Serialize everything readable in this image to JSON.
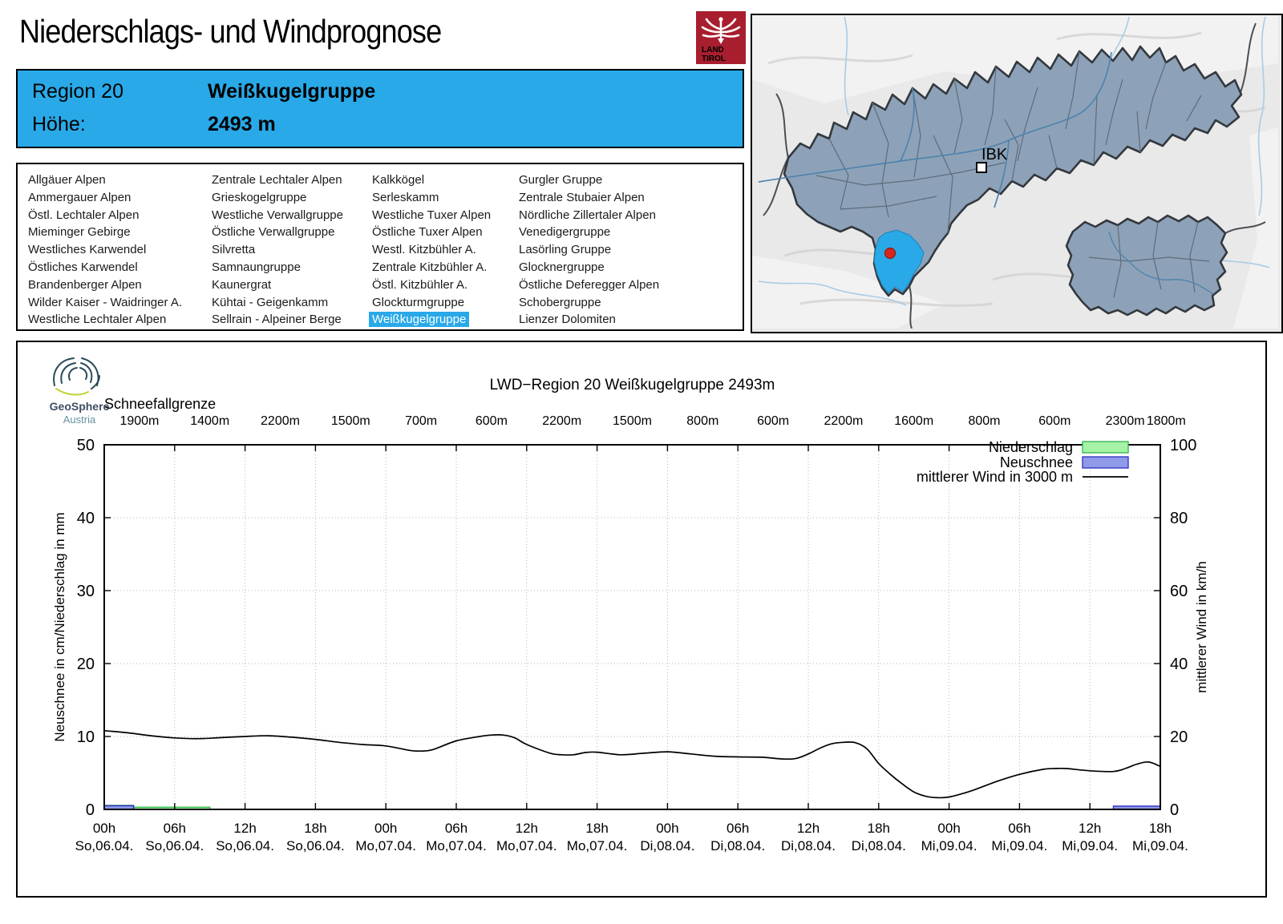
{
  "header": {
    "title": "Niederschlags- und Windprognose",
    "logo": {
      "line1": "LAND",
      "line2": "TIROL",
      "icon": "tirol-eagle-icon"
    }
  },
  "colors": {
    "accent_blue": "#29a9e8",
    "land_tirol_red": "#a81e2e",
    "map_region_fill": "#8da2b8",
    "marker_red": "#d9261c"
  },
  "info_box": {
    "region_label": "Region 20",
    "region_name": "Weißkugelgruppe",
    "altitude_label": "Höhe:",
    "altitude_value": "2493 m"
  },
  "regions": {
    "selected": "Weißkugelgruppe",
    "columns": [
      [
        "Allgäuer Alpen",
        "Ammergauer Alpen",
        "Östl. Lechtaler Alpen",
        "Mieminger Gebirge",
        "Westliches Karwendel",
        "Östliches Karwendel",
        "Brandenberger Alpen",
        "Wilder Kaiser - Waidringer A.",
        "Westliche Lechtaler Alpen"
      ],
      [
        "Zentrale Lechtaler Alpen",
        "Grieskogelgruppe",
        "Westliche Verwallgruppe",
        "Östliche Verwallgruppe",
        "Silvretta",
        "Samnaungruppe",
        "Kaunergrat",
        "Kühtai - Geigenkamm",
        "Sellrain - Alpeiner Berge"
      ],
      [
        "Kalkkögel",
        "Serleskamm",
        "Westliche Tuxer Alpen",
        "Östliche Tuxer Alpen",
        "Westl. Kitzbühler A.",
        "Zentrale Kitzbühler A.",
        "Östl. Kitzbühler A.",
        "Glockturmgruppe",
        "Weißkugelgruppe"
      ],
      [
        "Gurgler Gruppe",
        "Zentrale Stubaier Alpen",
        "Nördliche Zillertaler Alpen",
        "Venedigergruppe",
        "Lasörling Gruppe",
        "Glocknergruppe",
        "Östliche Deferegger Alpen",
        "Schobergruppe",
        "Lienzer Dolomiten"
      ]
    ]
  },
  "map": {
    "city_label": "IBK"
  },
  "geosphere_logo": {
    "line1": "GeoSphere",
    "line2": "Austria"
  },
  "chart_data": {
    "type": "line+bar",
    "title": "LWD−Region 20 Weißkugelgruppe 2493m",
    "top_axis": {
      "label": "Schneefallgrenze",
      "tick_hours": [
        3,
        9,
        15,
        21,
        27,
        33,
        39,
        45,
        51,
        57,
        63,
        69,
        75,
        81,
        87,
        90.5
      ],
      "tick_labels": [
        "1900m",
        "1400m",
        "2200m",
        "1500m",
        "700m",
        "600m",
        "2200m",
        "1500m",
        "800m",
        "600m",
        "2200m",
        "1600m",
        "800m",
        "600m",
        "2300m",
        "1800m"
      ]
    },
    "x_axis": {
      "hour_range": [
        0,
        90
      ],
      "ticks": [
        {
          "hour": 0,
          "time": "00h",
          "date": "So,06.04."
        },
        {
          "hour": 6,
          "time": "06h",
          "date": "So,06.04."
        },
        {
          "hour": 12,
          "time": "12h",
          "date": "So,06.04."
        },
        {
          "hour": 18,
          "time": "18h",
          "date": "So,06.04."
        },
        {
          "hour": 24,
          "time": "00h",
          "date": "Mo,07.04."
        },
        {
          "hour": 30,
          "time": "06h",
          "date": "Mo,07.04."
        },
        {
          "hour": 36,
          "time": "12h",
          "date": "Mo,07.04."
        },
        {
          "hour": 42,
          "time": "18h",
          "date": "Mo,07.04."
        },
        {
          "hour": 48,
          "time": "00h",
          "date": "Di,08.04."
        },
        {
          "hour": 54,
          "time": "06h",
          "date": "Di,08.04."
        },
        {
          "hour": 60,
          "time": "12h",
          "date": "Di,08.04."
        },
        {
          "hour": 66,
          "time": "18h",
          "date": "Di,08.04."
        },
        {
          "hour": 72,
          "time": "00h",
          "date": "Mi,09.04."
        },
        {
          "hour": 78,
          "time": "06h",
          "date": "Mi,09.04."
        },
        {
          "hour": 84,
          "time": "12h",
          "date": "Mi,09.04."
        },
        {
          "hour": 90,
          "time": "18h",
          "date": "Mi,09.04."
        }
      ]
    },
    "y_left": {
      "label": "Neuschnee in cm/Niederschlag in mm",
      "min": 0,
      "max": 50,
      "ticks": [
        0,
        10,
        20,
        30,
        40,
        50
      ]
    },
    "y_right": {
      "label": "mittlerer Wind in km/h",
      "min": 0,
      "max": 100,
      "ticks": [
        0,
        20,
        40,
        60,
        80,
        100
      ]
    },
    "grid": {
      "vertical_every_hours": 6,
      "horizontal_at": [
        10,
        20,
        30,
        40
      ]
    },
    "legend": [
      {
        "label": "Niederschlag",
        "type": "box",
        "fill": "#a6f2a6",
        "stroke": "#2db34a"
      },
      {
        "label": "Neuschnee",
        "type": "box",
        "fill": "#8f9ae8",
        "stroke": "#2d2dc4"
      },
      {
        "label": "mittlerer Wind in 3000 m",
        "type": "line",
        "stroke": "#000000"
      }
    ],
    "series": {
      "niederschlag": {
        "name": "Niederschlag",
        "unit": "mm",
        "axis": "left",
        "fill": "#a6f2a6",
        "stroke": "#2db34a",
        "segments": [
          {
            "from_hour": 0,
            "to_hour": 2.5,
            "value": 0.55
          },
          {
            "from_hour": 2.5,
            "to_hour": 9,
            "value": 0.3
          }
        ]
      },
      "neuschnee": {
        "name": "Neuschnee",
        "unit": "cm",
        "axis": "left",
        "fill": "#8f9ae8",
        "stroke": "#2d2dc4",
        "segments": [
          {
            "from_hour": 0,
            "to_hour": 2.5,
            "value": 0.5
          },
          {
            "from_hour": 86,
            "to_hour": 90,
            "value": 0.45
          }
        ]
      },
      "wind": {
        "name": "mittlerer Wind in 3000 m",
        "unit": "km/h",
        "axis": "right",
        "color": "#000000",
        "points": [
          [
            0,
            21.6
          ],
          [
            2,
            21.0
          ],
          [
            4,
            20.2
          ],
          [
            6,
            19.6
          ],
          [
            8,
            19.4
          ],
          [
            10,
            19.7
          ],
          [
            12,
            20.0
          ],
          [
            14,
            20.2
          ],
          [
            16,
            19.8
          ],
          [
            18,
            19.2
          ],
          [
            20,
            18.4
          ],
          [
            22,
            17.8
          ],
          [
            24,
            17.4
          ],
          [
            26,
            16.2
          ],
          [
            27,
            16.0
          ],
          [
            28,
            16.4
          ],
          [
            30,
            18.8
          ],
          [
            32,
            20.0
          ],
          [
            33,
            20.4
          ],
          [
            34,
            20.4
          ],
          [
            35,
            19.6
          ],
          [
            36,
            17.8
          ],
          [
            38,
            15.4
          ],
          [
            39,
            15.0
          ],
          [
            40,
            15.0
          ],
          [
            41,
            15.6
          ],
          [
            42,
            15.7
          ],
          [
            44,
            15.0
          ],
          [
            46,
            15.4
          ],
          [
            48,
            15.8
          ],
          [
            50,
            15.2
          ],
          [
            52,
            14.6
          ],
          [
            54,
            14.4
          ],
          [
            56,
            14.3
          ],
          [
            58,
            13.8
          ],
          [
            59,
            14.0
          ],
          [
            60,
            15.2
          ],
          [
            61,
            16.8
          ],
          [
            62,
            18.0
          ],
          [
            63,
            18.4
          ],
          [
            64,
            18.3
          ],
          [
            65,
            16.6
          ],
          [
            66,
            12.6
          ],
          [
            67,
            9.6
          ],
          [
            68,
            7.0
          ],
          [
            69,
            4.8
          ],
          [
            70,
            3.6
          ],
          [
            71,
            3.2
          ],
          [
            72,
            3.4
          ],
          [
            73,
            4.2
          ],
          [
            74,
            5.2
          ],
          [
            76,
            7.6
          ],
          [
            78,
            9.6
          ],
          [
            80,
            11.0
          ],
          [
            81,
            11.2
          ],
          [
            82,
            11.2
          ],
          [
            84,
            10.6
          ],
          [
            86,
            10.4
          ],
          [
            87,
            11.2
          ],
          [
            88,
            12.4
          ],
          [
            89,
            13.0
          ],
          [
            90,
            11.8
          ]
        ]
      }
    }
  }
}
